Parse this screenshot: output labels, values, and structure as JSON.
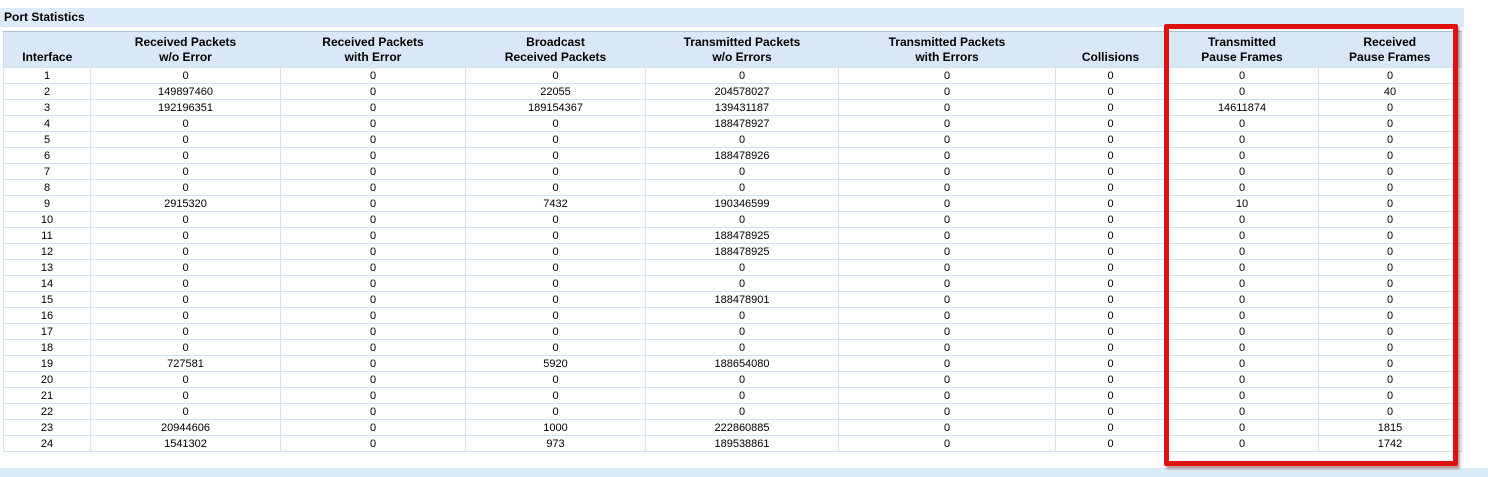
{
  "page": {
    "title": "Port Statistics"
  },
  "colors": {
    "panel_blue": "#dcebf9",
    "header_blue": "#d9e8f7",
    "grid_line": "#cfe2f3",
    "highlight_red": "#de1010"
  },
  "table": {
    "columns": [
      {
        "key": "interface",
        "label": "Interface"
      },
      {
        "key": "rx-no-error",
        "label": "Received Packets\nw/o Error"
      },
      {
        "key": "rx-with-error",
        "label": "Received Packets\nwith Error"
      },
      {
        "key": "broadcast-rx",
        "label": "Broadcast\nReceived Packets"
      },
      {
        "key": "tx-no-errors",
        "label": "Transmitted Packets\nw/o Errors"
      },
      {
        "key": "tx-with-errors",
        "label": "Transmitted Packets\nwith Errors"
      },
      {
        "key": "collisions",
        "label": "Collisions"
      },
      {
        "key": "tx-pause-frames",
        "label": "Transmitted\nPause Frames"
      },
      {
        "key": "rx-pause-frames",
        "label": "Received\nPause Frames"
      }
    ],
    "rows": [
      [
        "1",
        "0",
        "0",
        "0",
        "0",
        "0",
        "0",
        "0",
        "0"
      ],
      [
        "2",
        "149897460",
        "0",
        "22055",
        "204578027",
        "0",
        "0",
        "0",
        "40"
      ],
      [
        "3",
        "192196351",
        "0",
        "189154367",
        "139431187",
        "0",
        "0",
        "14611874",
        "0"
      ],
      [
        "4",
        "0",
        "0",
        "0",
        "188478927",
        "0",
        "0",
        "0",
        "0"
      ],
      [
        "5",
        "0",
        "0",
        "0",
        "0",
        "0",
        "0",
        "0",
        "0"
      ],
      [
        "6",
        "0",
        "0",
        "0",
        "188478926",
        "0",
        "0",
        "0",
        "0"
      ],
      [
        "7",
        "0",
        "0",
        "0",
        "0",
        "0",
        "0",
        "0",
        "0"
      ],
      [
        "8",
        "0",
        "0",
        "0",
        "0",
        "0",
        "0",
        "0",
        "0"
      ],
      [
        "9",
        "2915320",
        "0",
        "7432",
        "190346599",
        "0",
        "0",
        "10",
        "0"
      ],
      [
        "10",
        "0",
        "0",
        "0",
        "0",
        "0",
        "0",
        "0",
        "0"
      ],
      [
        "11",
        "0",
        "0",
        "0",
        "188478925",
        "0",
        "0",
        "0",
        "0"
      ],
      [
        "12",
        "0",
        "0",
        "0",
        "188478925",
        "0",
        "0",
        "0",
        "0"
      ],
      [
        "13",
        "0",
        "0",
        "0",
        "0",
        "0",
        "0",
        "0",
        "0"
      ],
      [
        "14",
        "0",
        "0",
        "0",
        "0",
        "0",
        "0",
        "0",
        "0"
      ],
      [
        "15",
        "0",
        "0",
        "0",
        "188478901",
        "0",
        "0",
        "0",
        "0"
      ],
      [
        "16",
        "0",
        "0",
        "0",
        "0",
        "0",
        "0",
        "0",
        "0"
      ],
      [
        "17",
        "0",
        "0",
        "0",
        "0",
        "0",
        "0",
        "0",
        "0"
      ],
      [
        "18",
        "0",
        "0",
        "0",
        "0",
        "0",
        "0",
        "0",
        "0"
      ],
      [
        "19",
        "727581",
        "0",
        "5920",
        "188654080",
        "0",
        "0",
        "0",
        "0"
      ],
      [
        "20",
        "0",
        "0",
        "0",
        "0",
        "0",
        "0",
        "0",
        "0"
      ],
      [
        "21",
        "0",
        "0",
        "0",
        "0",
        "0",
        "0",
        "0",
        "0"
      ],
      [
        "22",
        "0",
        "0",
        "0",
        "0",
        "0",
        "0",
        "0",
        "0"
      ],
      [
        "23",
        "20944606",
        "0",
        "1000",
        "222860885",
        "0",
        "0",
        "0",
        "1815"
      ],
      [
        "24",
        "1541302",
        "0",
        "973",
        "189538861",
        "0",
        "0",
        "0",
        "1742"
      ]
    ]
  },
  "annotation": {
    "type": "red-highlight-rectangle",
    "highlighted_columns": [
      "Transmitted Pause Frames",
      "Received Pause Frames"
    ]
  }
}
